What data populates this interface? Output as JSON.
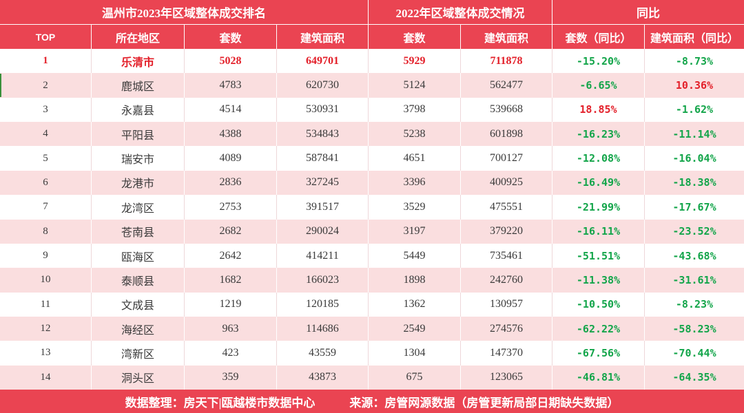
{
  "colors": {
    "header_bg": "#EA4452",
    "stripe_bg": "#FADEDF",
    "highlight_text": "#E3202A",
    "increase_text": "#E3202A",
    "decrease_text": "#13A54A",
    "body_text": "#3A3A3A",
    "row_marker": "#3A8F3A"
  },
  "chart_data": {
    "type": "table",
    "group_headers": [
      "温州市2023年区域整体成交排名",
      "2022年区域整体成交情况",
      "同比"
    ],
    "columns": [
      "TOP",
      "所在地区",
      "套数",
      "建筑面积",
      "套数",
      "建筑面积",
      "套数（同比）",
      "建筑面积（同比）"
    ],
    "rows": [
      {
        "top": 1,
        "region": "乐清市",
        "units_2023": 5028,
        "area_2023": 649701,
        "units_2022": 5929,
        "area_2022": 711878,
        "units_yoy": "-15.20%",
        "area_yoy": "-8.73%"
      },
      {
        "top": 2,
        "region": "鹿城区",
        "units_2023": 4783,
        "area_2023": 620730,
        "units_2022": 5124,
        "area_2022": 562477,
        "units_yoy": "-6.65%",
        "area_yoy": "10.36%"
      },
      {
        "top": 3,
        "region": "永嘉县",
        "units_2023": 4514,
        "area_2023": 530931,
        "units_2022": 3798,
        "area_2022": 539668,
        "units_yoy": "18.85%",
        "area_yoy": "-1.62%"
      },
      {
        "top": 4,
        "region": "平阳县",
        "units_2023": 4388,
        "area_2023": 534843,
        "units_2022": 5238,
        "area_2022": 601898,
        "units_yoy": "-16.23%",
        "area_yoy": "-11.14%"
      },
      {
        "top": 5,
        "region": "瑞安市",
        "units_2023": 4089,
        "area_2023": 587841,
        "units_2022": 4651,
        "area_2022": 700127,
        "units_yoy": "-12.08%",
        "area_yoy": "-16.04%"
      },
      {
        "top": 6,
        "region": "龙港市",
        "units_2023": 2836,
        "area_2023": 327245,
        "units_2022": 3396,
        "area_2022": 400925,
        "units_yoy": "-16.49%",
        "area_yoy": "-18.38%"
      },
      {
        "top": 7,
        "region": "龙湾区",
        "units_2023": 2753,
        "area_2023": 391517,
        "units_2022": 3529,
        "area_2022": 475551,
        "units_yoy": "-21.99%",
        "area_yoy": "-17.67%"
      },
      {
        "top": 8,
        "region": "苍南县",
        "units_2023": 2682,
        "area_2023": 290024,
        "units_2022": 3197,
        "area_2022": 379220,
        "units_yoy": "-16.11%",
        "area_yoy": "-23.52%"
      },
      {
        "top": 9,
        "region": "瓯海区",
        "units_2023": 2642,
        "area_2023": 414211,
        "units_2022": 5449,
        "area_2022": 735461,
        "units_yoy": "-51.51%",
        "area_yoy": "-43.68%"
      },
      {
        "top": 10,
        "region": "泰顺县",
        "units_2023": 1682,
        "area_2023": 166023,
        "units_2022": 1898,
        "area_2022": 242760,
        "units_yoy": "-11.38%",
        "area_yoy": "-31.61%"
      },
      {
        "top": 11,
        "region": "文成县",
        "units_2023": 1219,
        "area_2023": 120185,
        "units_2022": 1362,
        "area_2022": 130957,
        "units_yoy": "-10.50%",
        "area_yoy": "-8.23%"
      },
      {
        "top": 12,
        "region": "海经区",
        "units_2023": 963,
        "area_2023": 114686,
        "units_2022": 2549,
        "area_2022": 274576,
        "units_yoy": "-62.22%",
        "area_yoy": "-58.23%"
      },
      {
        "top": 13,
        "region": "湾新区",
        "units_2023": 423,
        "area_2023": 43559,
        "units_2022": 1304,
        "area_2022": 147370,
        "units_yoy": "-67.56%",
        "area_yoy": "-70.44%"
      },
      {
        "top": 14,
        "region": "洞头区",
        "units_2023": 359,
        "area_2023": 43873,
        "units_2022": 675,
        "area_2022": 123065,
        "units_yoy": "-46.81%",
        "area_yoy": "-64.35%"
      }
    ]
  },
  "footer": {
    "compiled_by": "数据整理：房天下|瓯越楼市数据中心",
    "source": "来源：房管网源数据（房管更新局部日期缺失数据）"
  }
}
